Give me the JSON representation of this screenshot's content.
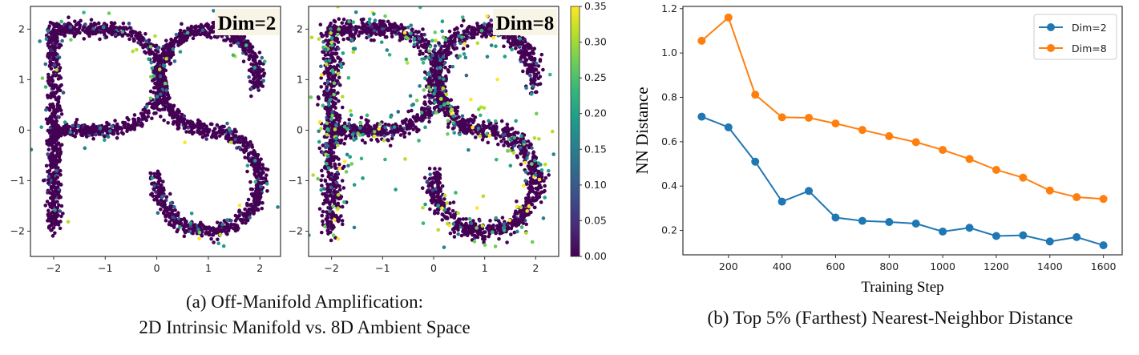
{
  "captions": {
    "a_line1": "(a)  Off-Manifold Amplification:",
    "a_line2": "2D Intrinsic Manifold vs. 8D Ambient Space",
    "b": "(b) Top 5% (Farthest) Nearest-Neighbor Distance"
  },
  "chart_data": [
    {
      "type": "scatter",
      "label": "Dim=2",
      "xlim": [
        -2.45,
        2.4
      ],
      "ylim": [
        -2.5,
        2.45
      ],
      "xticks": [
        -2,
        -1,
        0,
        1,
        2
      ],
      "yticks": [
        2,
        1,
        0,
        -1,
        -2
      ],
      "colormap": "viridis",
      "grid": false,
      "colors": {
        "base": "#440154"
      }
    },
    {
      "type": "scatter",
      "label": "Dim=8",
      "xlim": [
        -2.45,
        2.45
      ],
      "ylim": [
        -2.5,
        2.45
      ],
      "xticks": [
        -2,
        -1,
        0,
        1,
        2
      ],
      "yticks": [
        2,
        1,
        0,
        -1,
        -2
      ],
      "colormap": "viridis",
      "grid": false,
      "colorbar": {
        "range": [
          0.0,
          0.35
        ],
        "ticks": [
          "0.00",
          "0.05",
          "0.10",
          "0.15",
          "0.20",
          "0.25",
          "0.30",
          "0.35"
        ]
      }
    },
    {
      "type": "line",
      "xlabel": "Training Step",
      "ylabel": "NN Distance",
      "x": [
        100,
        200,
        300,
        400,
        500,
        600,
        700,
        800,
        900,
        1000,
        1100,
        1200,
        1300,
        1400,
        1500,
        1600
      ],
      "xlim": [
        30,
        1670
      ],
      "ylim": [
        0.09,
        1.21
      ],
      "xticks": [
        200,
        400,
        600,
        800,
        1000,
        1200,
        1400,
        1600
      ],
      "yticks": [
        0.2,
        0.4,
        0.6,
        0.8,
        1.0,
        1.2
      ],
      "grid": false,
      "legend": "top-right",
      "series": [
        {
          "name": "Dim=2",
          "color": "#1f77b4",
          "values": [
            0.713,
            0.665,
            0.51,
            0.33,
            0.378,
            0.258,
            0.243,
            0.238,
            0.231,
            0.195,
            0.212,
            0.175,
            0.178,
            0.15,
            0.17,
            0.133
          ]
        },
        {
          "name": "Dim=8",
          "color": "#ff7f0e",
          "values": [
            1.055,
            1.16,
            0.812,
            0.71,
            0.708,
            0.682,
            0.653,
            0.625,
            0.598,
            0.563,
            0.522,
            0.473,
            0.438,
            0.38,
            0.35,
            0.342
          ]
        }
      ]
    }
  ]
}
